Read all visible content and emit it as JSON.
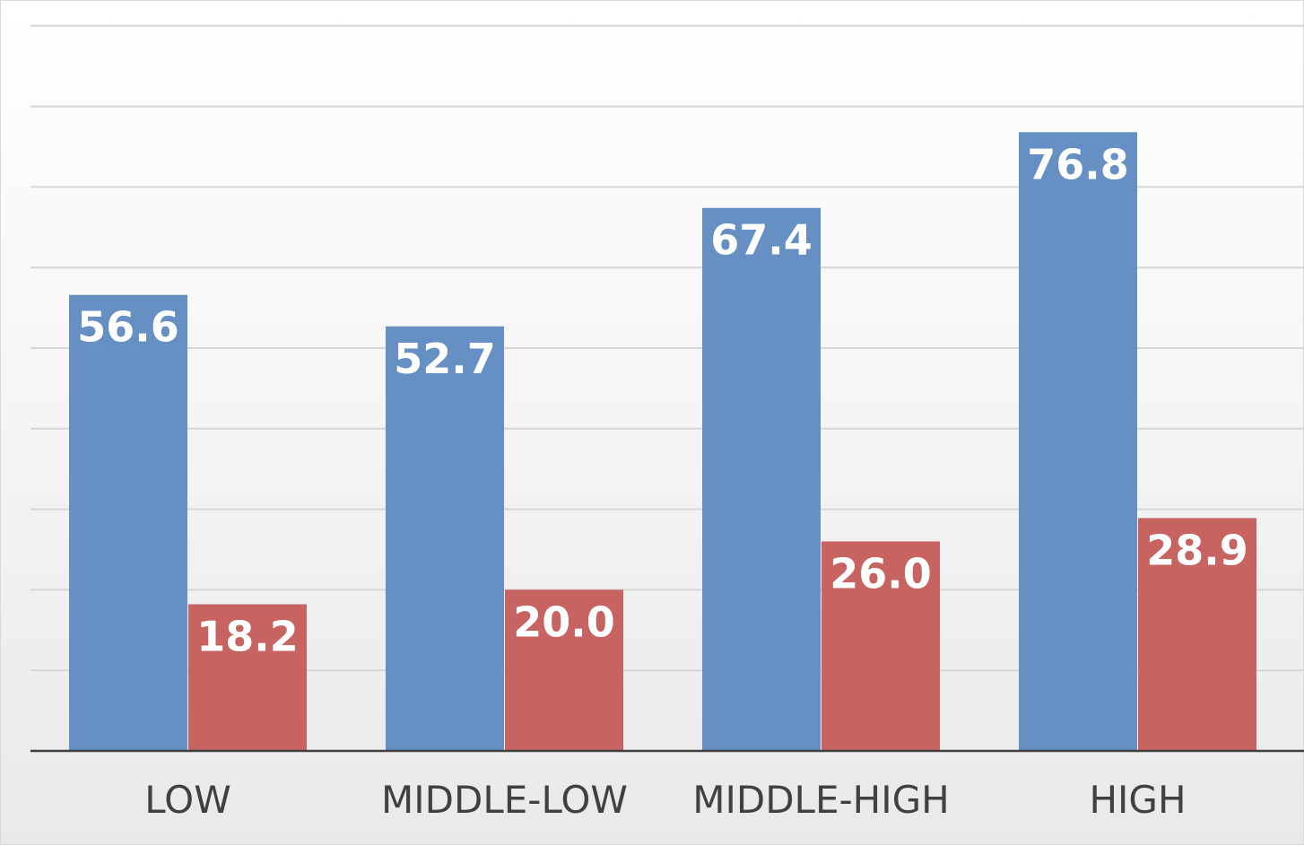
{
  "chart_data": {
    "type": "bar",
    "categories": [
      "LOW",
      "MIDDLE-LOW",
      "MIDDLE-HIGH",
      "HIGH"
    ],
    "series": [
      {
        "values": [
          56.6,
          52.7,
          67.4,
          76.8
        ],
        "color": "#6690c4"
      },
      {
        "values": [
          18.2,
          20.0,
          26.0,
          28.9
        ],
        "color": "#c76461"
      }
    ],
    "value_labels": [
      [
        "56.6",
        "52.7",
        "67.4",
        "76.8"
      ],
      [
        "18.2",
        "20.0",
        "26.0",
        "28.9"
      ]
    ],
    "ylim": [
      0,
      90
    ],
    "gridline_step": 10,
    "grid": true,
    "legend": "none",
    "data_labels": "inside-top",
    "label_color": "#ffffff",
    "axis_color": "#404040",
    "grid_color": "#d6d6d6"
  }
}
